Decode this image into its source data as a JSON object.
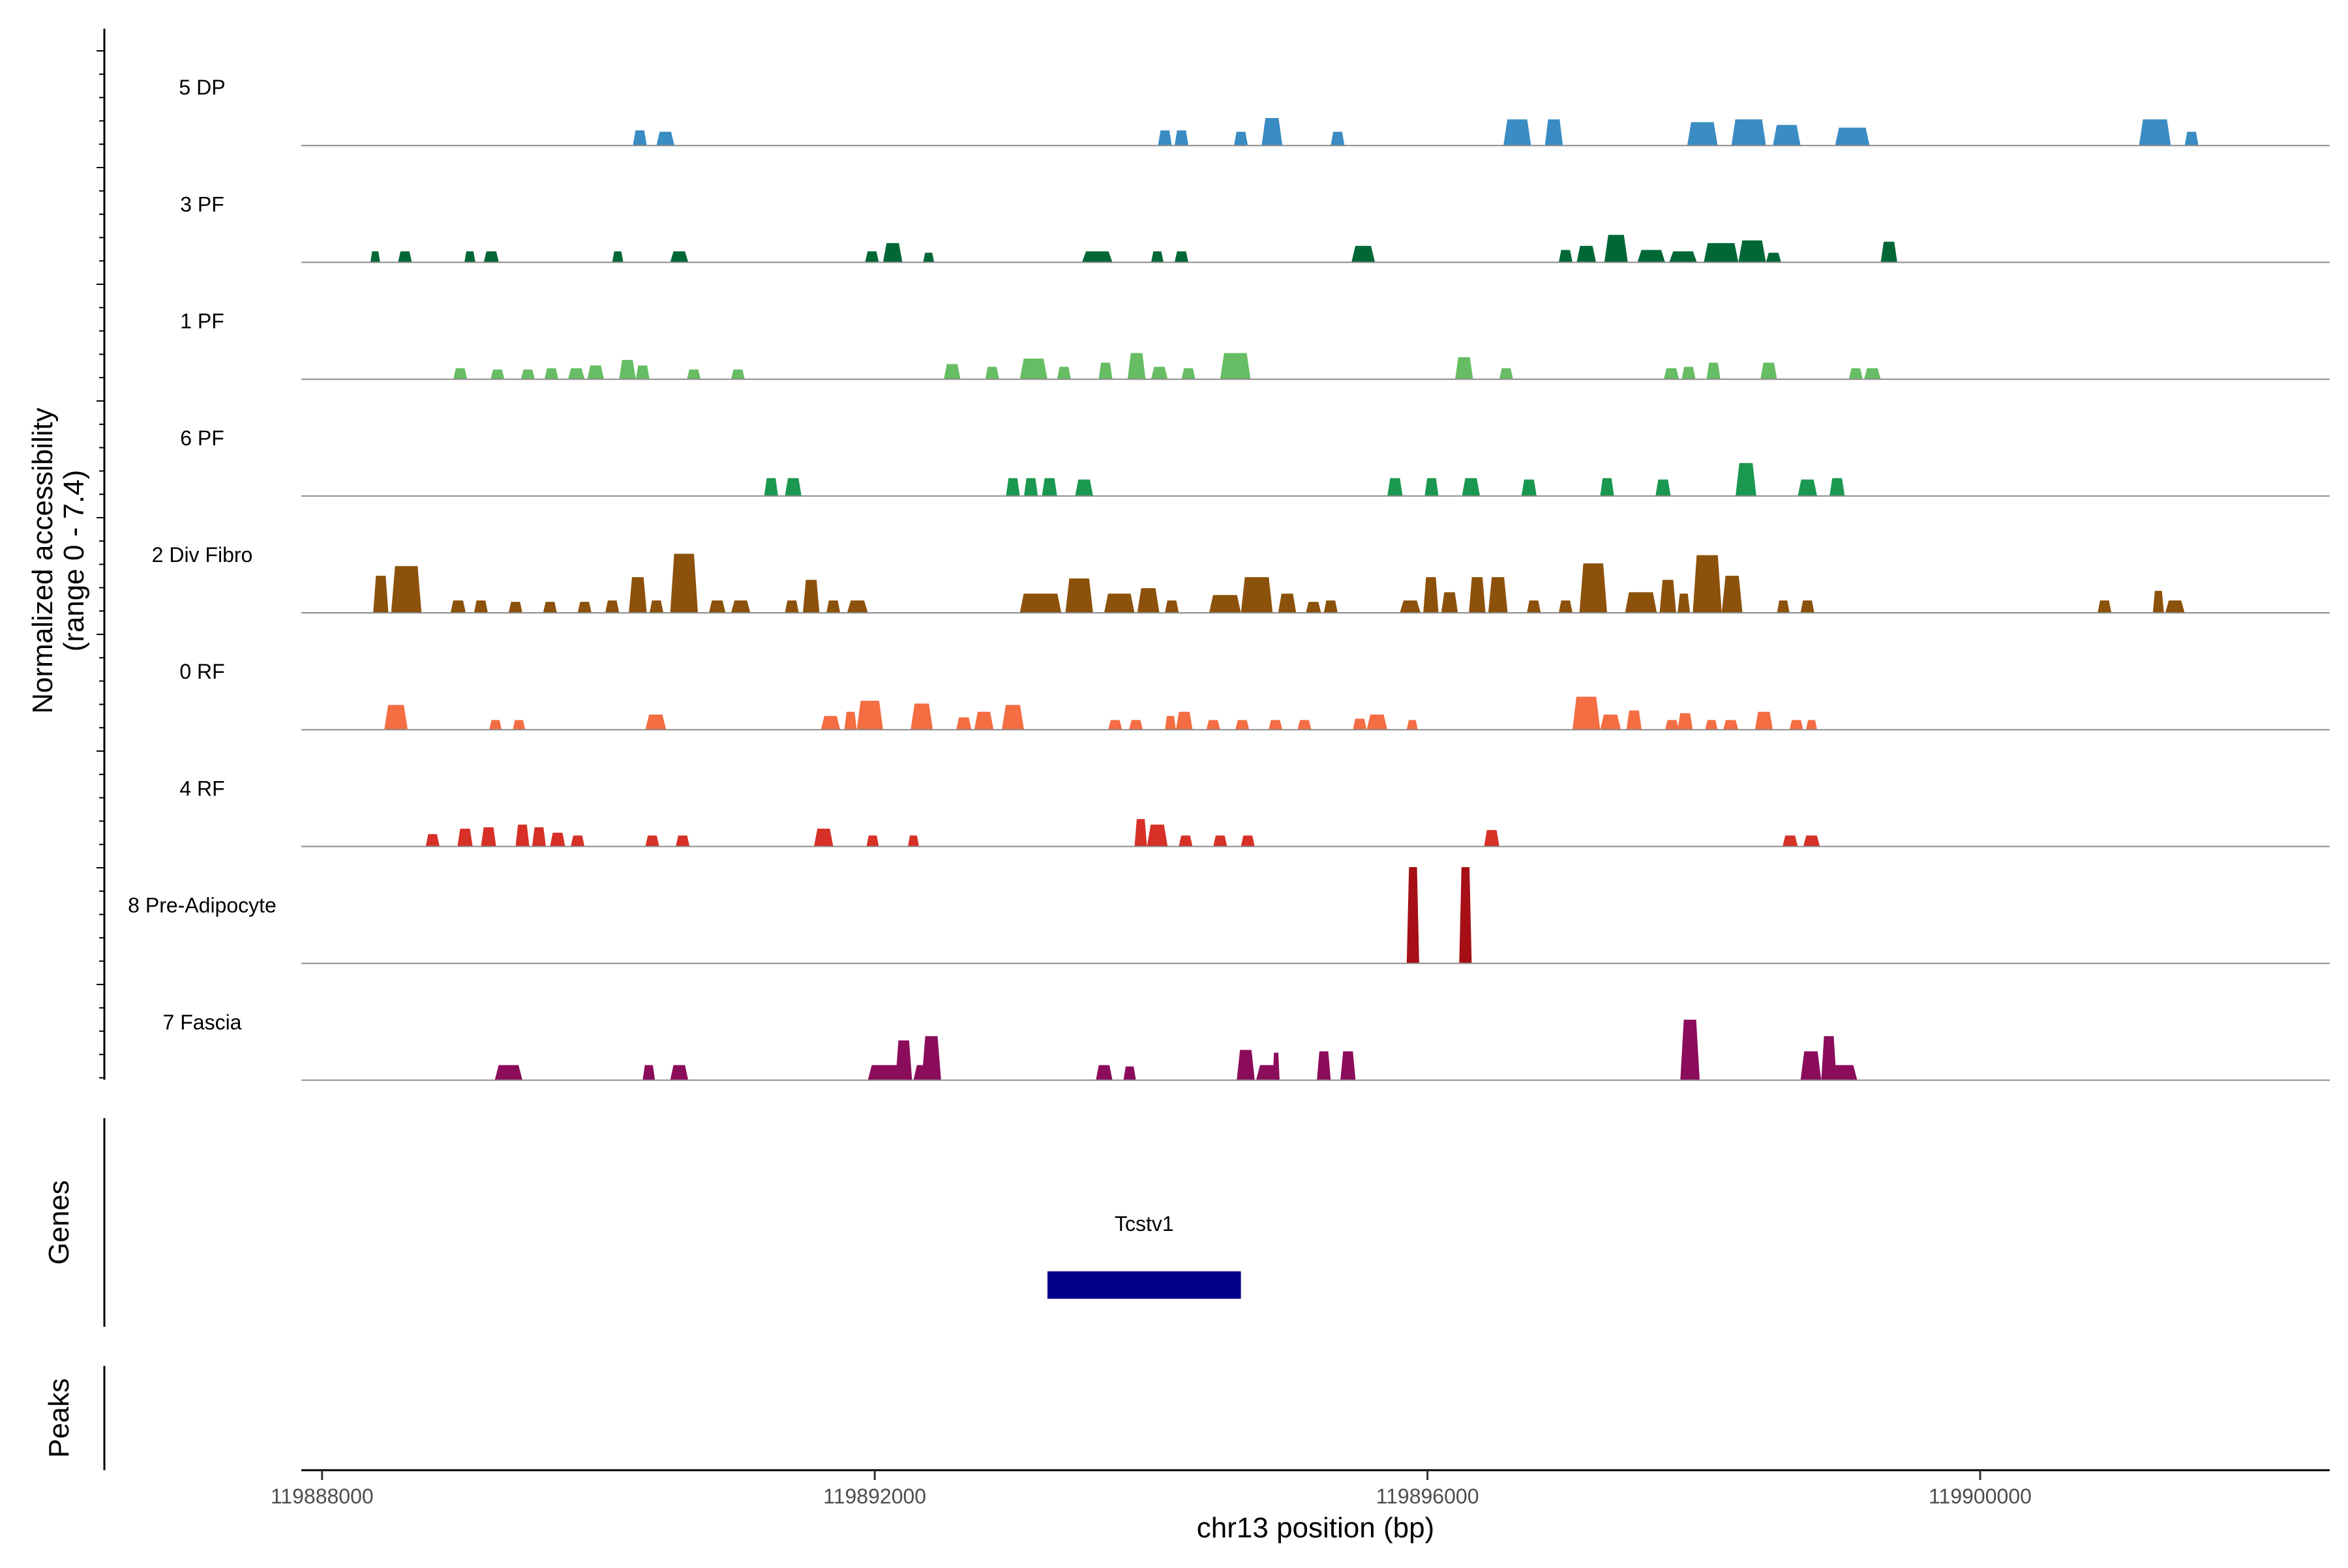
{
  "chart_data": {
    "type": "coverage",
    "title": "",
    "ylabel": "Normalized accessibility\n(range 0 - 7.4)",
    "ylabel_lines": [
      "Normalized accessibility",
      "(range 0 - 7.4)"
    ],
    "xlabel": "chr13 position (bp)",
    "xlim": [
      119887850,
      119902530
    ],
    "ylim": [
      0,
      7.4
    ],
    "x_ticks": [
      119888000,
      119892000,
      119896000,
      119900000
    ],
    "x_tick_labels": [
      "119888000",
      "119892000",
      "119896000",
      "119900000"
    ],
    "tracks": [
      {
        "name": "5 DP",
        "color": "#3A8CC3",
        "peaks": [
          [
            119890250,
            119890350,
            1.1
          ],
          [
            119890420,
            119890550,
            1.0
          ],
          [
            119894050,
            119894150,
            1.1
          ],
          [
            119894170,
            119894270,
            1.1
          ],
          [
            119894600,
            119894700,
            1.0
          ],
          [
            119894800,
            119894950,
            2.0
          ],
          [
            119895300,
            119895400,
            1.0
          ],
          [
            119896550,
            119896750,
            1.9
          ],
          [
            119896850,
            119896980,
            1.9
          ],
          [
            119897880,
            119898100,
            1.7
          ],
          [
            119898200,
            119898450,
            1.9
          ],
          [
            119898500,
            119898700,
            1.5
          ],
          [
            119898950,
            119899200,
            1.3
          ],
          [
            119901150,
            119901380,
            1.9
          ],
          [
            119901480,
            119901580,
            1.0
          ]
        ]
      },
      {
        "name": "3 PF",
        "color": "#006837",
        "peaks": [
          [
            119888350,
            119888420,
            0.8
          ],
          [
            119888550,
            119888650,
            0.8
          ],
          [
            119889030,
            119889110,
            0.8
          ],
          [
            119889170,
            119889280,
            0.8
          ],
          [
            119890100,
            119890180,
            0.8
          ],
          [
            119890520,
            119890650,
            0.8
          ],
          [
            119891930,
            119892030,
            0.8
          ],
          [
            119892060,
            119892200,
            1.4
          ],
          [
            119892350,
            119892430,
            0.7
          ],
          [
            119893500,
            119893720,
            0.8
          ],
          [
            119894000,
            119894090,
            0.8
          ],
          [
            119894170,
            119894270,
            0.8
          ],
          [
            119895450,
            119895620,
            1.2
          ],
          [
            119896950,
            119897050,
            0.9
          ],
          [
            119897080,
            119897220,
            1.2
          ],
          [
            119897280,
            119897450,
            2.0
          ],
          [
            119897520,
            119897720,
            0.9
          ],
          [
            119897750,
            119897950,
            0.8
          ],
          [
            119898000,
            119898250,
            1.4
          ],
          [
            119898250,
            119898450,
            1.6
          ],
          [
            119898450,
            119898560,
            0.7
          ],
          [
            119899280,
            119899400,
            1.5
          ]
        ]
      },
      {
        "name": "1 PF",
        "color": "#66BD63",
        "peaks": [
          [
            119888950,
            119889050,
            0.8
          ],
          [
            119889220,
            119889320,
            0.7
          ],
          [
            119889440,
            119889540,
            0.7
          ],
          [
            119889610,
            119889710,
            0.8
          ],
          [
            119889780,
            119889900,
            0.8
          ],
          [
            119889920,
            119890040,
            1.0
          ],
          [
            119890150,
            119890270,
            1.4
          ],
          [
            119890270,
            119890370,
            1.0
          ],
          [
            119890640,
            119890740,
            0.7
          ],
          [
            119890960,
            119891060,
            0.7
          ],
          [
            119892500,
            119892620,
            1.1
          ],
          [
            119892800,
            119892900,
            0.9
          ],
          [
            119893050,
            119893250,
            1.5
          ],
          [
            119893320,
            119893420,
            0.9
          ],
          [
            119893620,
            119893720,
            1.2
          ],
          [
            119893830,
            119893960,
            1.9
          ],
          [
            119894000,
            119894120,
            0.9
          ],
          [
            119894220,
            119894320,
            0.8
          ],
          [
            119894500,
            119894720,
            1.9
          ],
          [
            119896200,
            119896330,
            1.6
          ],
          [
            119896520,
            119896620,
            0.8
          ],
          [
            119897710,
            119897820,
            0.8
          ],
          [
            119897840,
            119897940,
            0.9
          ],
          [
            119898020,
            119898120,
            1.2
          ],
          [
            119898410,
            119898530,
            1.2
          ],
          [
            119899050,
            119899150,
            0.8
          ],
          [
            119899160,
            119899280,
            0.8
          ]
        ]
      },
      {
        "name": "6 PF",
        "color": "#1A9850",
        "peaks": [
          [
            119891200,
            119891300,
            1.3
          ],
          [
            119891350,
            119891470,
            1.3
          ],
          [
            119892950,
            119893050,
            1.3
          ],
          [
            119893080,
            119893180,
            1.3
          ],
          [
            119893210,
            119893320,
            1.3
          ],
          [
            119893450,
            119893580,
            1.2
          ],
          [
            119895710,
            119895820,
            1.3
          ],
          [
            119895980,
            119896080,
            1.3
          ],
          [
            119896250,
            119896380,
            1.3
          ],
          [
            119896680,
            119896790,
            1.2
          ],
          [
            119897250,
            119897350,
            1.3
          ],
          [
            119897650,
            119897760,
            1.2
          ],
          [
            119898230,
            119898380,
            2.4
          ],
          [
            119898680,
            119898820,
            1.2
          ],
          [
            119898910,
            119899020,
            1.3
          ]
        ]
      },
      {
        "name": "2 Div Fibro",
        "color": "#8C510A",
        "peaks": [
          [
            119888370,
            119888480,
            2.7
          ],
          [
            119888500,
            119888720,
            3.4
          ],
          [
            119888930,
            119889040,
            0.9
          ],
          [
            119889100,
            119889200,
            0.9
          ],
          [
            119889350,
            119889450,
            0.8
          ],
          [
            119889600,
            119889700,
            0.8
          ],
          [
            119889850,
            119889950,
            0.8
          ],
          [
            119890050,
            119890150,
            0.9
          ],
          [
            119890220,
            119890350,
            2.6
          ],
          [
            119890370,
            119890470,
            0.9
          ],
          [
            119890520,
            119890720,
            4.3
          ],
          [
            119890800,
            119890920,
            0.9
          ],
          [
            119890960,
            119891100,
            0.9
          ],
          [
            119891350,
            119891450,
            0.9
          ],
          [
            119891480,
            119891600,
            2.4
          ],
          [
            119891650,
            119891750,
            0.9
          ],
          [
            119891800,
            119891950,
            0.9
          ],
          [
            119893050,
            119893350,
            1.4
          ],
          [
            119893380,
            119893580,
            2.5
          ],
          [
            119893660,
            119893880,
            1.4
          ],
          [
            119893900,
            119894060,
            1.8
          ],
          [
            119894100,
            119894200,
            0.9
          ],
          [
            119894420,
            119894650,
            1.3
          ],
          [
            119894650,
            119894880,
            2.6
          ],
          [
            119894920,
            119895050,
            1.4
          ],
          [
            119895120,
            119895230,
            0.8
          ],
          [
            119895250,
            119895350,
            0.9
          ],
          [
            119895800,
            119895950,
            0.9
          ],
          [
            119895970,
            119896080,
            2.6
          ],
          [
            119896100,
            119896220,
            1.5
          ],
          [
            119896300,
            119896420,
            2.6
          ],
          [
            119896440,
            119896580,
            2.6
          ],
          [
            119896720,
            119896820,
            0.9
          ],
          [
            119896950,
            119897050,
            0.9
          ],
          [
            119897100,
            119897300,
            3.6
          ],
          [
            119897430,
            119897660,
            1.5
          ],
          [
            119897680,
            119897800,
            2.4
          ],
          [
            119897810,
            119897900,
            1.4
          ],
          [
            119897920,
            119898130,
            4.2
          ],
          [
            119898130,
            119898280,
            2.7
          ],
          [
            119898530,
            119898620,
            0.9
          ],
          [
            119898700,
            119898800,
            0.9
          ],
          [
            119900850,
            119900950,
            0.9
          ],
          [
            119901250,
            119901330,
            1.6
          ],
          [
            119901340,
            119901480,
            0.9
          ]
        ]
      },
      {
        "name": "0 RF",
        "color": "#F46D43",
        "peaks": [
          [
            119888450,
            119888620,
            1.8
          ],
          [
            119889210,
            119889300,
            0.7
          ],
          [
            119889380,
            119889470,
            0.7
          ],
          [
            119890340,
            119890490,
            1.1
          ],
          [
            119891610,
            119891750,
            1.0
          ],
          [
            119891780,
            119891870,
            1.3
          ],
          [
            119891870,
            119892060,
            2.1
          ],
          [
            119892260,
            119892420,
            1.9
          ],
          [
            119892590,
            119892700,
            0.9
          ],
          [
            119892720,
            119892860,
            1.3
          ],
          [
            119892920,
            119893080,
            1.8
          ],
          [
            119893690,
            119893790,
            0.7
          ],
          [
            119893840,
            119893940,
            0.7
          ],
          [
            119894100,
            119894180,
            1.0
          ],
          [
            119894180,
            119894300,
            1.3
          ],
          [
            119894400,
            119894500,
            0.7
          ],
          [
            119894610,
            119894710,
            0.7
          ],
          [
            119894850,
            119894950,
            0.7
          ],
          [
            119895060,
            119895160,
            0.7
          ],
          [
            119895460,
            119895560,
            0.8
          ],
          [
            119895560,
            119895710,
            1.1
          ],
          [
            119895850,
            119895930,
            0.7
          ],
          [
            119897050,
            119897250,
            2.4
          ],
          [
            119897250,
            119897400,
            1.1
          ],
          [
            119897440,
            119897550,
            1.4
          ],
          [
            119897720,
            119897820,
            0.7
          ],
          [
            119897810,
            119897920,
            1.2
          ],
          [
            119898010,
            119898100,
            0.7
          ],
          [
            119898140,
            119898250,
            0.7
          ],
          [
            119898370,
            119898500,
            1.3
          ],
          [
            119898620,
            119898720,
            0.7
          ],
          [
            119898740,
            119898820,
            0.7
          ]
        ]
      },
      {
        "name": "4 RF",
        "color": "#D73027",
        "peaks": [
          [
            119888750,
            119888850,
            0.9
          ],
          [
            119888980,
            119889090,
            1.3
          ],
          [
            119889150,
            119889260,
            1.4
          ],
          [
            119889400,
            119889500,
            1.6
          ],
          [
            119889520,
            119889620,
            1.4
          ],
          [
            119889650,
            119889760,
            1.0
          ],
          [
            119889800,
            119889900,
            0.8
          ],
          [
            119890340,
            119890440,
            0.8
          ],
          [
            119890560,
            119890660,
            0.8
          ],
          [
            119891560,
            119891700,
            1.3
          ],
          [
            119891940,
            119892030,
            0.8
          ],
          [
            119892240,
            119892320,
            0.8
          ],
          [
            119893880,
            119893970,
            2.0
          ],
          [
            119893970,
            119894120,
            1.6
          ],
          [
            119894200,
            119894300,
            0.8
          ],
          [
            119894450,
            119894550,
            0.8
          ],
          [
            119894650,
            119894750,
            0.8
          ],
          [
            119896410,
            119896520,
            1.2
          ],
          [
            119898570,
            119898680,
            0.8
          ],
          [
            119898720,
            119898840,
            0.8
          ]
        ]
      },
      {
        "name": "8 Pre-Adipocyte",
        "color": "#A50F15",
        "peaks": [
          [
            119895850,
            119895940,
            7.0
          ],
          [
            119896230,
            119896320,
            7.0
          ]
        ]
      },
      {
        "name": "7 Fascia",
        "color": "#8B0C5B",
        "peaks": [
          [
            119889250,
            119889450,
            1.1
          ],
          [
            119890320,
            119890410,
            1.1
          ],
          [
            119890520,
            119890650,
            1.1
          ],
          [
            119891950,
            119892250,
            1.1
          ],
          [
            119892150,
            119892270,
            2.9
          ],
          [
            119892280,
            119892420,
            1.1
          ],
          [
            119892340,
            119892480,
            3.2
          ],
          [
            119893600,
            119893720,
            1.1
          ],
          [
            119893800,
            119893890,
            1.0
          ],
          [
            119894620,
            119894750,
            2.2
          ],
          [
            119894760,
            119894920,
            1.1
          ],
          [
            119894880,
            119894930,
            2.0
          ],
          [
            119895200,
            119895300,
            2.1
          ],
          [
            119895370,
            119895480,
            2.1
          ],
          [
            119897830,
            119897970,
            4.4
          ],
          [
            119898700,
            119898850,
            2.1
          ],
          [
            119898850,
            119898960,
            3.2
          ],
          [
            119898920,
            119899110,
            1.1
          ]
        ]
      }
    ],
    "genes": [
      {
        "name": "Tcstv1",
        "start": 119893250,
        "end": 119894650,
        "color": "#00008B"
      }
    ],
    "panels": [
      {
        "name": "Genes"
      },
      {
        "name": "Peaks"
      }
    ]
  }
}
